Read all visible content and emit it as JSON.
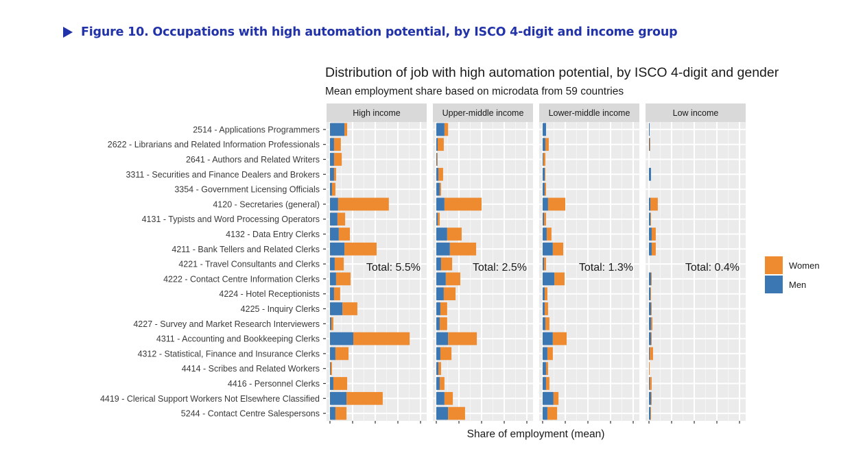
{
  "figure": {
    "caption": "Figure 10. Occupations with high automation potential, by ISCO 4-digit and income group"
  },
  "chart_data": {
    "type": "bar",
    "orientation": "horizontal",
    "stacked": true,
    "title": "Distribution of job with high automation potential, by ISCO 4-digit and gender",
    "subtitle": "Mean employment share based on microdata from 59 countries",
    "xlabel": "Share of employment (mean)",
    "ylabel": "",
    "xlim": [
      0,
      4.2
    ],
    "x_ticks": [
      0,
      1,
      2,
      3,
      4
    ],
    "x_tick_labels_visible": false,
    "grid": true,
    "legend": {
      "position": "right",
      "entries": [
        {
          "name": "Women",
          "color": "#ee8a2f"
        },
        {
          "name": "Men",
          "color": "#3a77b3"
        }
      ]
    },
    "categories": [
      "2514 - Applications Programmers",
      "2622 - Librarians and Related Information Professionals",
      "2641 - Authors and Related Writers",
      "3311 - Securities and Finance Dealers and Brokers",
      "3354 - Government Licensing Officials",
      "4120 - Secretaries (general)",
      "4131 - Typists and Word Processing Operators",
      "4132 - Data Entry Clerks",
      "4211 - Bank Tellers and Related Clerks",
      "4221 - Travel Consultants and Clerks",
      "4222 - Contact Centre Information Clerks",
      "4224 - Hotel Receptionists",
      "4225 - Inquiry Clerks",
      "4227 - Survey and Market Research Interviewers",
      "4311 - Accounting and Bookkeeping Clerks",
      "4312 - Statistical, Finance and Insurance Clerks",
      "4414 - Scribes and Related Workers",
      "4416 - Personnel Clerks",
      "4419 - Clerical Support Workers Not Elsewhere Classified",
      "5244 - Contact Centre Salespersons"
    ],
    "panels": [
      {
        "name": "High income",
        "total_label": "Total: 5.5%",
        "series": [
          {
            "name": "Men",
            "values": [
              0.64,
              0.18,
              0.18,
              0.18,
              0.09,
              0.36,
              0.33,
              0.39,
              0.64,
              0.21,
              0.27,
              0.18,
              0.55,
              0.06,
              1.03,
              0.24,
              0.03,
              0.15,
              0.73,
              0.24
            ]
          },
          {
            "name": "Women",
            "values": [
              0.12,
              0.3,
              0.34,
              0.09,
              0.15,
              2.24,
              0.34,
              0.49,
              1.42,
              0.4,
              0.64,
              0.27,
              0.66,
              0.09,
              2.49,
              0.58,
              0.06,
              0.61,
              1.6,
              0.49
            ]
          }
        ]
      },
      {
        "name": "Upper-middle income",
        "total_label": "Total: 2.5%",
        "series": [
          {
            "name": "Men",
            "values": [
              0.36,
              0.06,
              0.03,
              0.09,
              0.15,
              0.36,
              0.06,
              0.48,
              0.6,
              0.21,
              0.42,
              0.33,
              0.18,
              0.15,
              0.52,
              0.18,
              0.09,
              0.15,
              0.36,
              0.52
            ]
          },
          {
            "name": "Women",
            "values": [
              0.16,
              0.27,
              0.03,
              0.21,
              0.06,
              1.64,
              0.09,
              0.64,
              1.16,
              0.49,
              0.64,
              0.52,
              0.3,
              0.33,
              1.27,
              0.49,
              0.12,
              0.21,
              0.37,
              0.75
            ]
          }
        ]
      },
      {
        "name": "Lower-middle income",
        "total_label": "Total: 1.3%",
        "series": [
          {
            "name": "Men",
            "values": [
              0.15,
              0.12,
              0.03,
              0.09,
              0.09,
              0.24,
              0.06,
              0.18,
              0.45,
              0.06,
              0.52,
              0.09,
              0.09,
              0.12,
              0.45,
              0.21,
              0.15,
              0.15,
              0.48,
              0.21
            ]
          },
          {
            "name": "Women",
            "values": [
              0.0,
              0.15,
              0.09,
              0.03,
              0.06,
              0.76,
              0.09,
              0.21,
              0.46,
              0.09,
              0.45,
              0.12,
              0.15,
              0.18,
              0.61,
              0.24,
              0.09,
              0.15,
              0.22,
              0.43
            ]
          }
        ]
      },
      {
        "name": "Low income",
        "total_label": "Total: 0.4%",
        "series": [
          {
            "name": "Men",
            "values": [
              0.03,
              0.03,
              0.0,
              0.09,
              0.0,
              0.06,
              0.06,
              0.12,
              0.12,
              0.0,
              0.09,
              0.06,
              0.09,
              0.09,
              0.09,
              0.03,
              0.0,
              0.03,
              0.09,
              0.06
            ]
          },
          {
            "name": "Women",
            "values": [
              0.0,
              0.03,
              0.0,
              0.0,
              0.0,
              0.33,
              0.03,
              0.18,
              0.18,
              0.0,
              0.03,
              0.03,
              0.03,
              0.06,
              0.03,
              0.15,
              0.03,
              0.09,
              0.03,
              0.03
            ]
          }
        ]
      }
    ]
  }
}
